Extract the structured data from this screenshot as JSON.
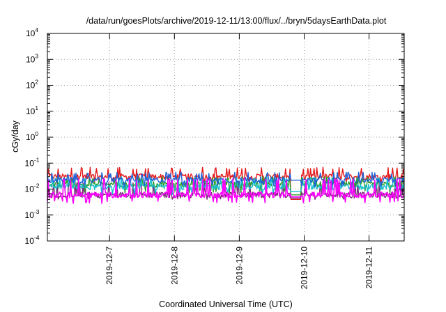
{
  "chart_data": {
    "type": "line",
    "title": "/data/run/goesPlots/archive/2019-12-11/13:00/flux/../bryn/5daysEarthData.plot",
    "xlabel": "Coordinated Universal Time (UTC)",
    "ylabel": "cGy/day",
    "yscale": "log",
    "ylim": [
      0.0001,
      10000
    ],
    "xlim": [
      "2019-12-06T01:00",
      "2019-12-11T13:00"
    ],
    "y_ticks": [
      {
        "base": "10",
        "exp": "-4"
      },
      {
        "base": "10",
        "exp": "-3"
      },
      {
        "base": "10",
        "exp": "-2"
      },
      {
        "base": "10",
        "exp": "-1"
      },
      {
        "base": "10",
        "exp": "0"
      },
      {
        "base": "10",
        "exp": "1"
      },
      {
        "base": "10",
        "exp": "2"
      },
      {
        "base": "10",
        "exp": "3"
      },
      {
        "base": "10",
        "exp": "4"
      }
    ],
    "x_ticks": [
      {
        "label": "2019-12-7",
        "value": "2019-12-07T00:00"
      },
      {
        "label": "2019-12-8",
        "value": "2019-12-08T00:00"
      },
      {
        "label": "2019-12-9",
        "value": "2019-12-09T00:00"
      },
      {
        "label": "2019-12-10",
        "value": "2019-12-10T00:00"
      },
      {
        "label": "2019-12-11",
        "value": "2019-12-11T00:00"
      }
    ],
    "grid": true,
    "data_gap": [
      "2019-12-09T19:00",
      "2019-12-09T23:00"
    ],
    "series": [
      {
        "color": "#e41a1c",
        "typical": 0.03,
        "min": 0.018,
        "max": 0.07,
        "gap_value": 0.004
      },
      {
        "color": "#7a2a7a",
        "typical": 0.006,
        "min": 0.004,
        "max": 0.02,
        "gap_value": 0.0045
      },
      {
        "color": "#2ca02c",
        "typical": 0.015,
        "min": 0.007,
        "max": 0.03,
        "gap_value": 0.006
      },
      {
        "color": "#17becf",
        "typical": 0.012,
        "min": 0.006,
        "max": 0.03,
        "gap_value": 0.008
      },
      {
        "color": "#1f5fd6",
        "typical": 0.022,
        "min": 0.012,
        "max": 0.045,
        "gap_value": 0.022
      },
      {
        "color": "#ff00ff",
        "typical": 0.006,
        "min": 0.0028,
        "max": 0.025,
        "gap_value": 0.005
      }
    ]
  }
}
